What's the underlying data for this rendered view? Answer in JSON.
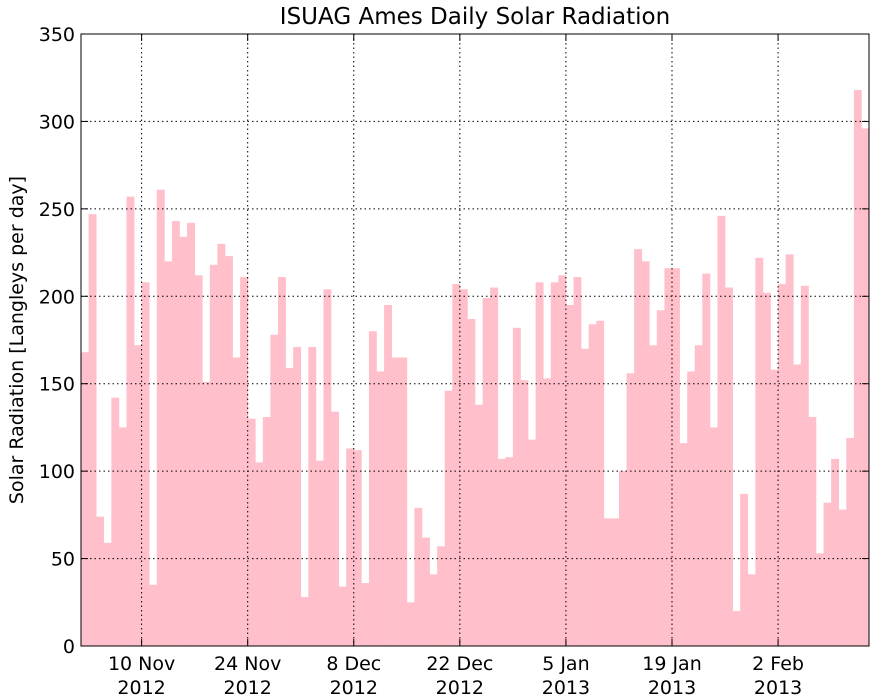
{
  "chart_data": {
    "type": "bar",
    "title": "ISUAG Ames Daily Solar Radiation",
    "ylabel": "Solar Radiation [Langleys per day]",
    "xlabel": "",
    "ylim": [
      0,
      350
    ],
    "yticks": [
      0,
      50,
      100,
      150,
      200,
      250,
      300,
      350
    ],
    "x_start": "2012-11-02",
    "x_end": "2013-02-13",
    "xticks": [
      {
        "date": "2012-11-10",
        "line1": "10 Nov",
        "line2": "2012"
      },
      {
        "date": "2012-11-24",
        "line1": "24 Nov",
        "line2": "2012"
      },
      {
        "date": "2012-12-08",
        "line1": "8 Dec",
        "line2": "2012"
      },
      {
        "date": "2012-12-22",
        "line1": "22 Dec",
        "line2": "2012"
      },
      {
        "date": "2013-01-05",
        "line1": "5 Jan",
        "line2": "2013"
      },
      {
        "date": "2013-01-19",
        "line1": "19 Jan",
        "line2": "2013"
      },
      {
        "date": "2013-02-02",
        "line1": "2 Feb",
        "line2": "2013"
      }
    ],
    "grid": true,
    "bar_color": "#ffc0cb",
    "series": [
      {
        "dates": [
          "2012-11-02",
          "2012-11-03",
          "2012-11-04",
          "2012-11-05",
          "2012-11-06",
          "2012-11-07",
          "2012-11-08",
          "2012-11-09",
          "2012-11-10",
          "2012-11-11",
          "2012-11-12",
          "2012-11-13",
          "2012-11-14",
          "2012-11-15",
          "2012-11-16",
          "2012-11-17",
          "2012-11-18",
          "2012-11-19",
          "2012-11-20",
          "2012-11-21",
          "2012-11-22",
          "2012-11-23",
          "2012-11-24",
          "2012-11-25",
          "2012-11-26",
          "2012-11-27",
          "2012-11-28",
          "2012-11-29",
          "2012-11-30",
          "2012-12-01",
          "2012-12-02",
          "2012-12-03",
          "2012-12-04",
          "2012-12-05",
          "2012-12-06",
          "2012-12-07",
          "2012-12-08",
          "2012-12-09",
          "2012-12-10",
          "2012-12-11",
          "2012-12-12",
          "2012-12-13",
          "2012-12-14",
          "2012-12-15",
          "2012-12-16",
          "2012-12-17",
          "2012-12-18",
          "2012-12-19",
          "2012-12-20",
          "2012-12-21",
          "2012-12-22",
          "2012-12-23",
          "2012-12-24",
          "2012-12-25",
          "2012-12-26",
          "2012-12-27",
          "2012-12-28",
          "2012-12-29",
          "2012-12-30",
          "2012-12-31",
          "2013-01-01",
          "2013-01-02",
          "2013-01-03",
          "2013-01-04",
          "2013-01-05",
          "2013-01-06",
          "2013-01-07",
          "2013-01-08",
          "2013-01-09",
          "2013-01-10",
          "2013-01-11",
          "2013-01-12",
          "2013-01-13",
          "2013-01-14",
          "2013-01-15",
          "2013-01-16",
          "2013-01-17",
          "2013-01-18",
          "2013-01-19",
          "2013-01-20",
          "2013-01-21",
          "2013-01-22",
          "2013-01-23",
          "2013-01-24",
          "2013-01-25",
          "2013-01-26",
          "2013-01-27",
          "2013-01-28",
          "2013-01-29",
          "2013-01-30",
          "2013-01-31",
          "2013-02-01",
          "2013-02-02",
          "2013-02-03",
          "2013-02-04",
          "2013-02-05",
          "2013-02-06",
          "2013-02-07",
          "2013-02-08",
          "2013-02-09",
          "2013-02-10",
          "2013-02-11",
          "2013-02-12"
        ],
        "values": [
          168,
          247,
          74,
          59,
          142,
          125,
          257,
          172,
          208,
          35,
          261,
          220,
          243,
          234,
          242,
          212,
          151,
          218,
          230,
          223,
          165,
          211,
          130,
          105,
          131,
          178,
          211,
          159,
          171,
          28,
          171,
          106,
          204,
          134,
          34,
          113,
          112,
          36,
          180,
          157,
          195,
          165,
          165,
          25,
          79,
          62,
          41,
          57,
          146,
          207,
          204,
          187,
          138,
          199,
          205,
          107,
          108,
          182,
          152,
          118,
          208,
          153,
          208,
          212,
          195,
          211,
          170,
          184,
          186,
          73,
          73,
          100,
          156,
          227,
          220,
          172,
          192,
          216,
          216,
          116,
          157,
          172,
          213,
          125,
          246,
          205,
          20,
          87,
          41,
          222,
          202,
          158,
          207,
          224,
          161,
          206,
          131,
          53,
          82,
          107,
          78,
          119,
          318
        ]
      },
      {
        "dates": [
          "2013-02-13"
        ],
        "values": [
          296
        ]
      }
    ]
  }
}
